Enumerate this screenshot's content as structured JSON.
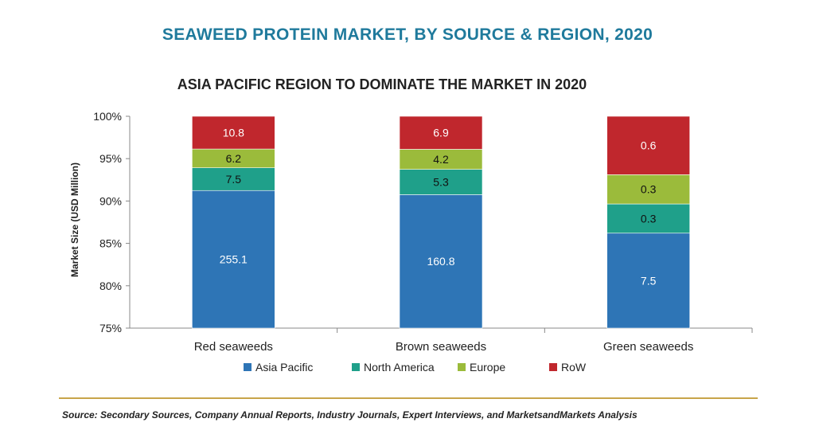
{
  "header": {
    "title": "SEAWEED PROTEIN MARKET, BY SOURCE & REGION, 2020",
    "subtitle": "ASIA PACIFIC REGION TO DOMINATE THE MARKET IN 2020"
  },
  "footer": {
    "source": "Source: Secondary Sources, Company Annual Reports, Industry Journals, Expert Interviews, and MarketsandMarkets Analysis"
  },
  "colors": {
    "title": "#1f7a9c",
    "rule": "#c8a54a"
  },
  "chart_data": {
    "type": "bar",
    "stacked": true,
    "normalized": true,
    "title": "ASIA PACIFIC REGION TO DOMINATE THE MARKET IN 2020",
    "xlabel": "",
    "ylabel": "Market Size (USD Million)",
    "ylim": [
      75,
      100
    ],
    "yticks": [
      "75%",
      "80%",
      "85%",
      "90%",
      "95%",
      "100%"
    ],
    "grid": false,
    "legend_position": "bottom",
    "categories": [
      "Red seaweeds",
      "Brown seaweeds",
      "Green seaweeds"
    ],
    "series": [
      {
        "name": "Asia Pacific",
        "color": "#2e75b6",
        "values": [
          255.1,
          160.8,
          7.5
        ]
      },
      {
        "name": "North America",
        "color": "#1fa08a",
        "values": [
          7.5,
          5.3,
          0.3
        ]
      },
      {
        "name": "Europe",
        "color": "#9bbb3b",
        "values": [
          6.2,
          4.2,
          0.3
        ]
      },
      {
        "name": "RoW",
        "color": "#c0272d",
        "values": [
          10.8,
          6.9,
          0.6
        ]
      }
    ]
  }
}
